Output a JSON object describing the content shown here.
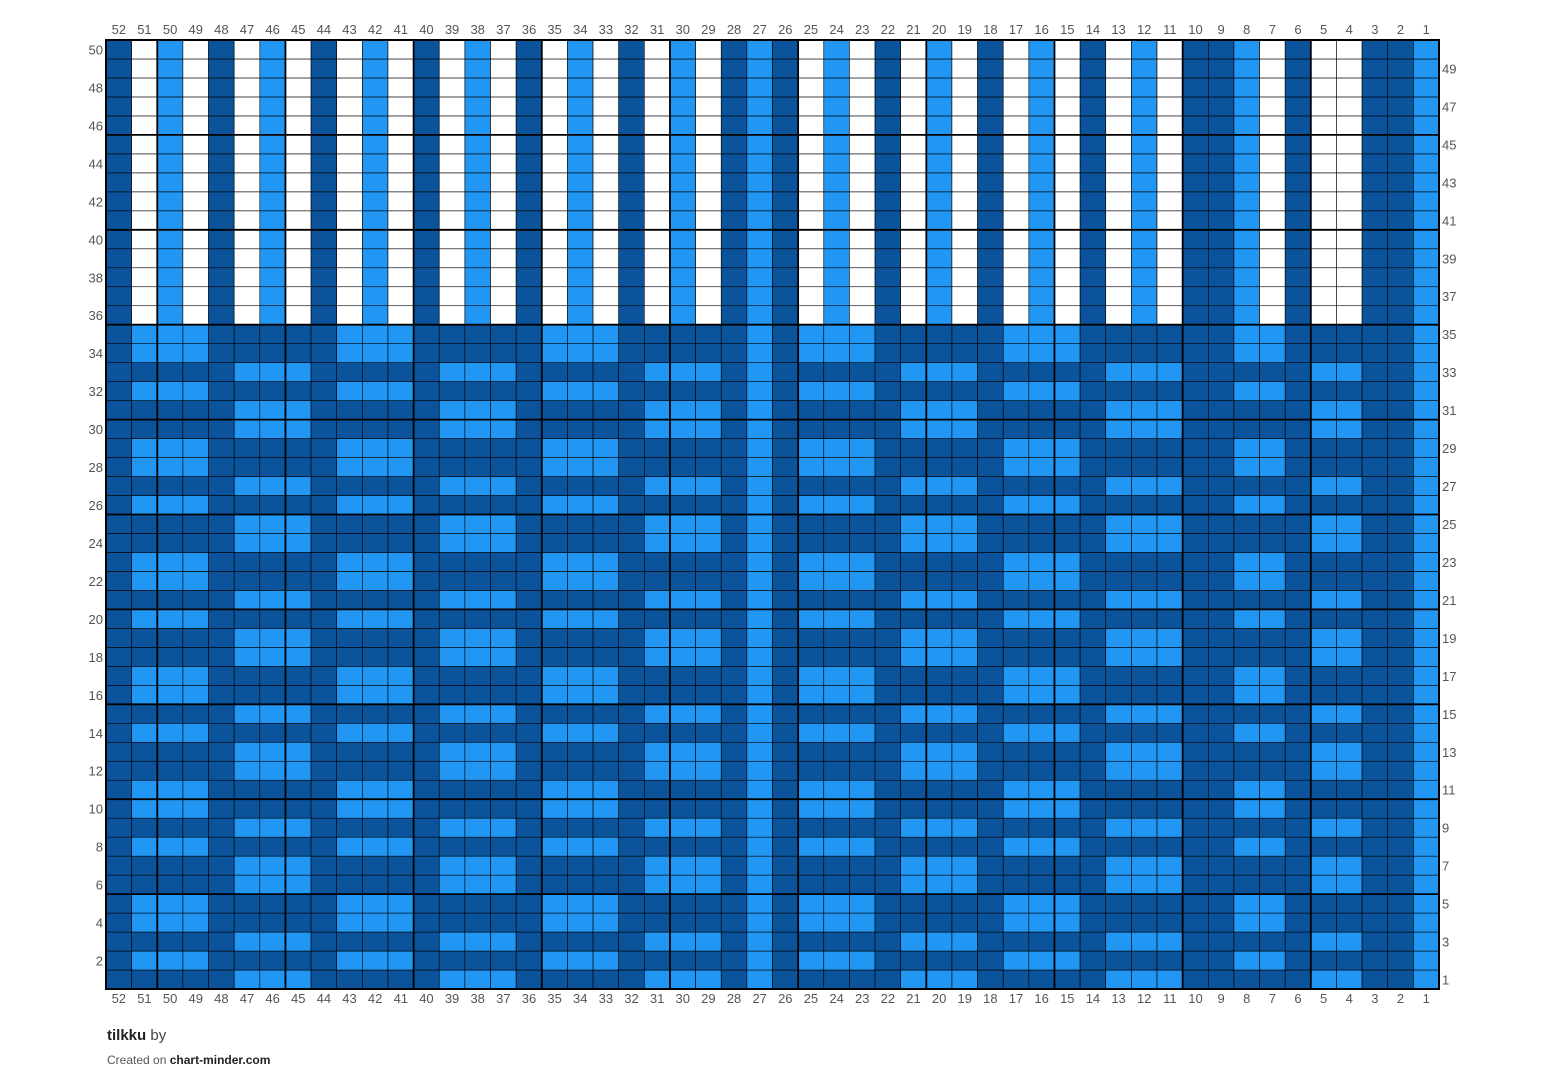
{
  "chart": {
    "name": "tilkku",
    "by_label": "by",
    "created_on_label": "Created on",
    "site": "chart-minder.com",
    "stitches": 52,
    "rows": 50,
    "column_numbering": "right-to-left",
    "row_numbering": "bottom-to-top",
    "row_labels_left": "even rows",
    "row_labels_right": "odd rows",
    "major_grid_every": 5
  },
  "colors": {
    "dark_blue": "#0b539b",
    "light_blue": "#2196f3",
    "white": "#ffffff",
    "grid_line": "#000000",
    "label_text": "#555555"
  },
  "chart_data": {
    "type": "heatmap",
    "title": "tilkku",
    "columns": 52,
    "rows": 50,
    "legend": [
      {
        "code": "D",
        "color": "#0b539b"
      },
      {
        "code": "L",
        "color": "#2196f3"
      },
      {
        "code": "W",
        "color": "#ffffff"
      }
    ],
    "top_block": {
      "rows": [
        36,
        50
      ],
      "columns_52_to_1": "DWLWDWLWDWLWDWLWDWLWDWLWDLDWLWDWLWDWLWDWLWDDLWDWWDDL"
    },
    "checked_columns": {
      "columns_52_to_1": "DxxxDxxxDxxxDxxxDxxxDxxxDLDxxxDxxxDxxxDxxxDDxxDxxDDL",
      "row_pattern_1_to_35": "DLDLLDDLDLLDDLDLLDDLDLLDDLDLLDDLDLL",
      "segment_pattern_left_to_right": "LDLD"
    }
  }
}
